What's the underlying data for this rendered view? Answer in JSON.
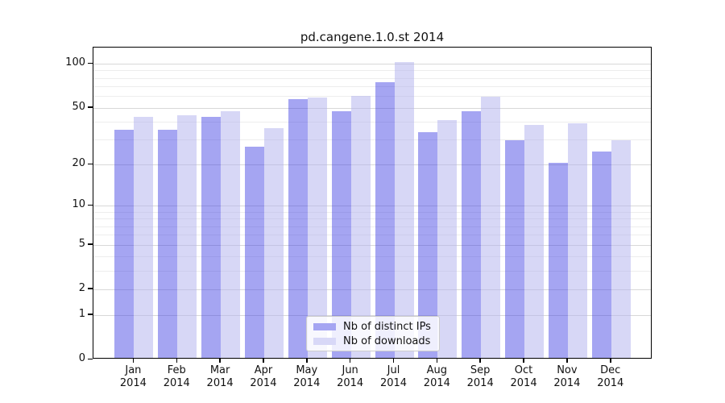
{
  "chart_data": {
    "type": "bar",
    "title": "pd.cangene.1.0.st 2014",
    "categories": [
      "Jan",
      "Feb",
      "Mar",
      "Apr",
      "May",
      "Jun",
      "Jul",
      "Aug",
      "Sep",
      "Oct",
      "Nov",
      "Dec"
    ],
    "category_sublabel": "2014",
    "series": [
      {
        "name": "Nb of distinct IPs",
        "fill": "rgba(64,64,228,0.47)",
        "solid_color": "#a5a5f2",
        "values": [
          34,
          34,
          42,
          26,
          56,
          46,
          73,
          33,
          46,
          29,
          20,
          24
        ]
      },
      {
        "name": "Nb of downloads",
        "fill": "rgba(176,176,238,0.5)",
        "solid_color": "#d8d8f7",
        "values": [
          42,
          43,
          46,
          35,
          57,
          59,
          100,
          40,
          58,
          37,
          38,
          29
        ]
      }
    ],
    "y_axis": {
      "scale": "log1p",
      "ylim": [
        0,
        100
      ],
      "labeled_ticks": [
        100,
        50,
        20,
        10,
        5,
        2,
        1,
        0
      ],
      "minor_gridline_values": [
        3,
        4,
        6,
        7,
        8,
        9,
        30,
        40,
        60,
        70,
        80,
        90
      ],
      "major_gridline_values": [
        1,
        2,
        5,
        10,
        20,
        50,
        100
      ],
      "major_grid_color": "#d8d8d8",
      "minor_grid_color": "#ededed"
    },
    "legend": {
      "position": "bottom-center",
      "entries": [
        "Nb of distinct IPs",
        "Nb of downloads"
      ]
    },
    "grid": "on"
  }
}
